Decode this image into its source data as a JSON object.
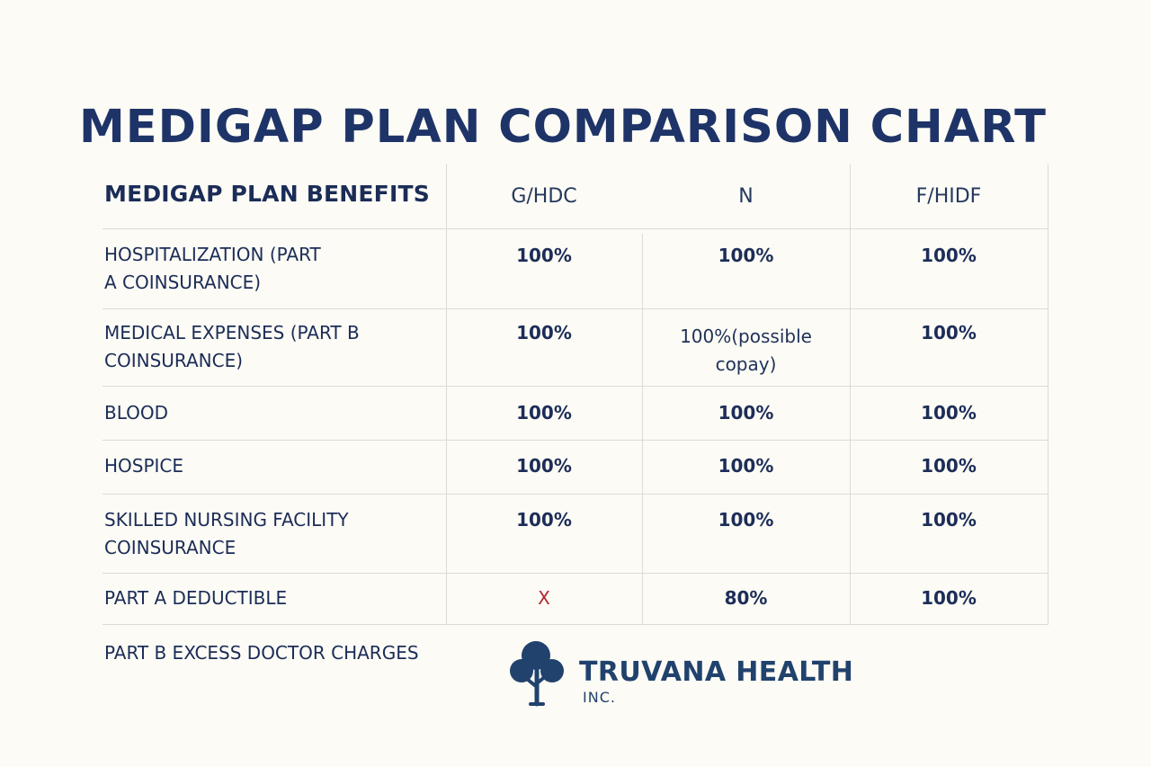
{
  "title": "MEDIGAP PLAN COMPARISON CHART",
  "table": {
    "header_label": "MEDIGAP PLAN BENEFITS",
    "columns": [
      "G/HDC",
      "N",
      "F/HIDF"
    ],
    "rows": [
      {
        "label": "HOSPITALIZATION (PART\nA COINSURANCE)",
        "values": [
          "100%",
          "100%",
          "100%"
        ]
      },
      {
        "label": "MEDICAL EXPENSES (PART B\nCOINSURANCE)",
        "values": [
          "100%",
          "100%(possible\ncopay)",
          "100%"
        ]
      },
      {
        "label": "BLOOD",
        "values": [
          "100%",
          "100%",
          "100%"
        ]
      },
      {
        "label": "HOSPICE",
        "values": [
          "100%",
          "100%",
          "100%"
        ]
      },
      {
        "label": "SKILLED NURSING FACILITY\nCOINSURANCE",
        "values": [
          "100%",
          "100%",
          "100%"
        ]
      },
      {
        "label": "PART A DEDUCTIBLE",
        "values": [
          "X",
          "80%",
          "100%"
        ]
      }
    ]
  },
  "footer_row_label": "PART B EXCESS DOCTOR CHARGES",
  "brand": {
    "name": "TRUVANA HEALTH",
    "suffix": "INC.",
    "logo_icon": "tree-icon"
  },
  "colors": {
    "background": "#fcfbf5",
    "title": "#1e3468",
    "text": "#1b2c57",
    "x_mark": "#b3262d",
    "logo": "#21426d"
  }
}
